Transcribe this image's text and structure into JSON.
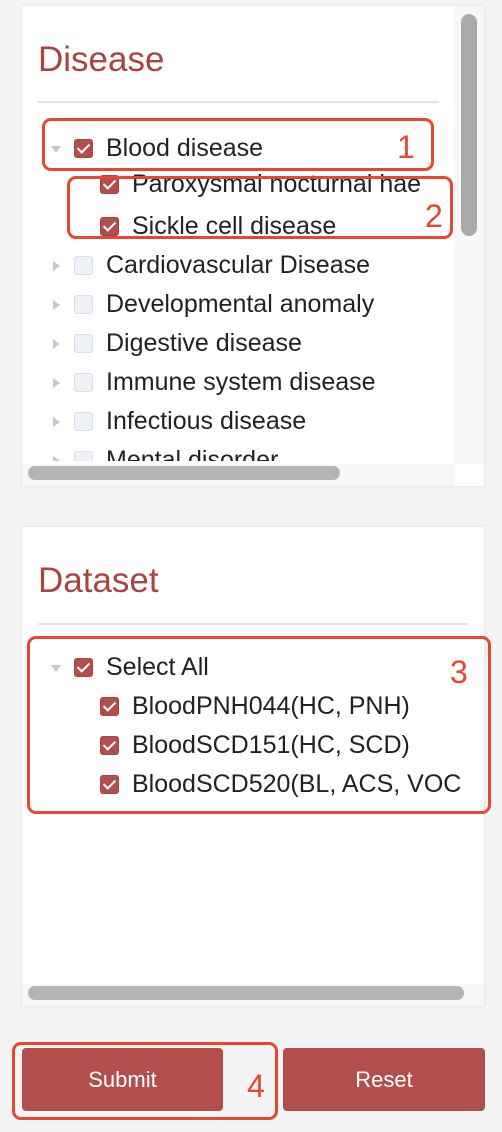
{
  "disease": {
    "title": "Disease",
    "tree": {
      "blood": {
        "label": "Blood disease",
        "checked": true,
        "expanded": true
      },
      "pnh": {
        "label": "Paroxysmal nocturnal hae",
        "checked": true
      },
      "scd": {
        "label": "Sickle cell disease",
        "checked": true
      },
      "cardio": {
        "label": "Cardiovascular Disease",
        "checked": false
      },
      "developmental": {
        "label": "Developmental anomaly",
        "checked": false
      },
      "digestive": {
        "label": "Digestive disease",
        "checked": false
      },
      "immune": {
        "label": "Immune system disease",
        "checked": false
      },
      "infectious": {
        "label": "Infectious disease",
        "checked": false
      },
      "mental": {
        "label": "Mental disorder",
        "checked": false
      }
    }
  },
  "dataset": {
    "title": "Dataset",
    "tree": {
      "select_all": {
        "label": "Select All",
        "checked": true,
        "expanded": true
      },
      "pnh044": {
        "label": "BloodPNH044(HC, PNH)",
        "checked": true
      },
      "scd151": {
        "label": "BloodSCD151(HC, SCD)",
        "checked": true
      },
      "scd520": {
        "label": "BloodSCD520(BL, ACS, VOC",
        "checked": true
      }
    }
  },
  "buttons": {
    "submit": "Submit",
    "reset": "Reset"
  },
  "annotations": {
    "a1": "1",
    "a2": "2",
    "a3": "3",
    "a4": "4"
  },
  "colors": {
    "accent": "#b24f4c",
    "title": "#a94442",
    "annotation": "#e8462f"
  }
}
